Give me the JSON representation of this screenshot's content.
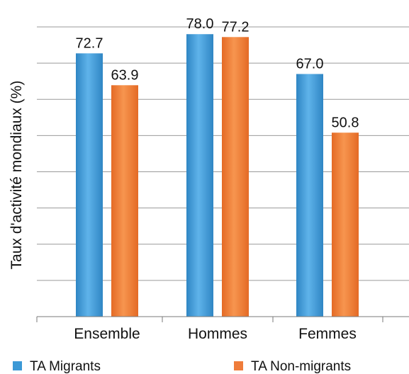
{
  "chart_data": {
    "type": "bar",
    "categories": [
      "Ensemble",
      "Hommes",
      "Femmes"
    ],
    "series": [
      {
        "name": "TA Migrants",
        "values": [
          72.7,
          78.0,
          67.0
        ],
        "color": "#3c99d6",
        "labels": [
          "72.7",
          "78.0",
          "67.0"
        ]
      },
      {
        "name": "TA Non-migrants",
        "values": [
          63.9,
          77.2,
          50.8
        ],
        "color": "#ef7c3a",
        "labels": [
          "63.9",
          "77.2",
          "50.8"
        ]
      }
    ],
    "ylabel": "Taux d'activité mondiaux (%)",
    "ylim": [
      0,
      80
    ],
    "grid": true,
    "legend_position": "bottom"
  }
}
